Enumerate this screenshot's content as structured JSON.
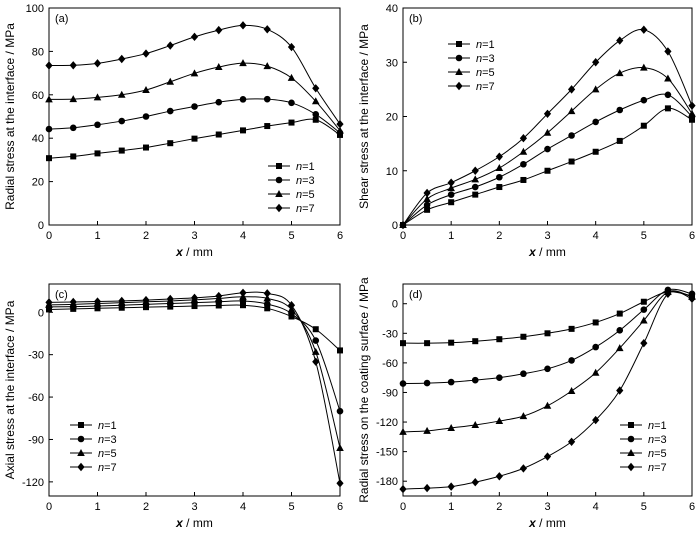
{
  "chart_data": [
    {
      "type": "line",
      "panel_label": "(a)",
      "xlabel_var": "x",
      "xlabel_unit": " / mm",
      "ylabel": "Radial stress at the interface / MPa",
      "xlim": [
        0,
        6
      ],
      "ylim": [
        0,
        100
      ],
      "xticks": [
        "0",
        "1",
        "2",
        "3",
        "4",
        "5",
        "6"
      ],
      "yticks": [
        "0",
        "20",
        "40",
        "60",
        "80",
        "100"
      ],
      "grid": false,
      "legend_position": "bottom-right",
      "series": [
        {
          "name_var": "n",
          "name_value": "=1",
          "marker": "square",
          "x": [
            0,
            0.5,
            1,
            1.5,
            2,
            2.5,
            3,
            3.5,
            4,
            4.5,
            5,
            5.5,
            6
          ],
          "y": [
            30.8,
            31.6,
            33.0,
            34.3,
            35.7,
            37.7,
            39.8,
            41.7,
            43.6,
            45.6,
            47.2,
            48.5,
            41.5
          ]
        },
        {
          "name_var": "n",
          "name_value": "=3",
          "marker": "circle",
          "x": [
            0,
            0.5,
            1,
            1.5,
            2,
            2.5,
            3,
            3.5,
            4,
            4.5,
            5,
            5.5,
            6
          ],
          "y": [
            44.2,
            44.8,
            46.2,
            47.9,
            50.0,
            52.5,
            54.6,
            56.6,
            57.9,
            58.0,
            56.3,
            51.0,
            42.5
          ]
        },
        {
          "name_var": "n",
          "name_value": "=5",
          "marker": "triangle",
          "x": [
            0,
            0.5,
            1,
            1.5,
            2,
            2.5,
            3,
            3.5,
            4,
            4.5,
            5,
            5.5,
            6
          ],
          "y": [
            57.9,
            58.0,
            58.8,
            60.0,
            62.2,
            66.0,
            69.9,
            72.8,
            74.6,
            73.2,
            67.8,
            57.0,
            43.5
          ]
        },
        {
          "name_var": "n",
          "name_value": "=7",
          "marker": "diamond",
          "x": [
            0,
            0.5,
            1,
            1.5,
            2,
            2.5,
            3,
            3.5,
            4,
            4.5,
            5,
            5.5,
            6
          ],
          "y": [
            73.5,
            73.6,
            74.5,
            76.5,
            79.0,
            82.7,
            86.7,
            89.8,
            92.0,
            90.2,
            82.0,
            63.0,
            46.5
          ]
        }
      ]
    },
    {
      "type": "line",
      "panel_label": "(b)",
      "xlabel_var": "x",
      "xlabel_unit": " / mm",
      "ylabel": "Shear stress at the interface / MPa",
      "xlim": [
        0,
        6
      ],
      "ylim": [
        0,
        40
      ],
      "xticks": [
        "0",
        "1",
        "2",
        "3",
        "4",
        "5",
        "6"
      ],
      "yticks": [
        "0",
        "10",
        "20",
        "30",
        "40"
      ],
      "grid": false,
      "legend_position": "top-left",
      "series": [
        {
          "name_var": "n",
          "name_value": "=1",
          "marker": "square",
          "x": [
            0,
            0.5,
            1,
            1.5,
            2,
            2.5,
            3,
            3.5,
            4,
            4.5,
            5,
            5.5,
            6
          ],
          "y": [
            0,
            2.8,
            4.2,
            5.6,
            7.0,
            8.3,
            10.0,
            11.7,
            13.5,
            15.5,
            18.3,
            21.5,
            19.4
          ]
        },
        {
          "name_var": "n",
          "name_value": "=3",
          "marker": "circle",
          "x": [
            0,
            0.5,
            1,
            1.5,
            2,
            2.5,
            3,
            3.5,
            4,
            4.5,
            5,
            5.5,
            6
          ],
          "y": [
            0,
            3.7,
            5.6,
            7.0,
            8.8,
            11.2,
            14.0,
            16.5,
            19.0,
            21.2,
            23.0,
            24.0,
            20.0
          ]
        },
        {
          "name_var": "n",
          "name_value": "=5",
          "marker": "triangle",
          "x": [
            0,
            0.5,
            1,
            1.5,
            2,
            2.5,
            3,
            3.5,
            4,
            4.5,
            5,
            5.5,
            6
          ],
          "y": [
            0,
            4.8,
            6.8,
            8.4,
            10.5,
            13.5,
            17.0,
            21.0,
            25.0,
            28.0,
            29.0,
            27.0,
            20.5
          ]
        },
        {
          "name_var": "n",
          "name_value": "=7",
          "marker": "diamond",
          "x": [
            0,
            0.5,
            1,
            1.5,
            2,
            2.5,
            3,
            3.5,
            4,
            4.5,
            5,
            5.5,
            6
          ],
          "y": [
            0,
            5.9,
            7.8,
            10.0,
            12.6,
            16.0,
            20.5,
            25.0,
            30.0,
            34.0,
            36.0,
            32.0,
            22.0
          ]
        }
      ]
    },
    {
      "type": "line",
      "panel_label": "(c)",
      "xlabel_var": "x",
      "xlabel_unit": " / mm",
      "ylabel": "Axial stress at the interface / MPa",
      "xlim": [
        0,
        6
      ],
      "ylim": [
        -130,
        20
      ],
      "xticks": [
        "0",
        "1",
        "2",
        "3",
        "4",
        "5",
        "6"
      ],
      "yticks": [
        "-120",
        "-90",
        "-60",
        "-30",
        "0"
      ],
      "grid": false,
      "legend_position": "bottom-left",
      "series": [
        {
          "name_var": "n",
          "name_value": "=1",
          "marker": "square",
          "x": [
            0,
            0.5,
            1,
            1.5,
            2,
            2.5,
            3,
            3.5,
            4,
            4.5,
            5,
            5.5,
            6
          ],
          "y": [
            2.0,
            2.4,
            2.8,
            3.2,
            3.6,
            4.0,
            4.4,
            4.8,
            5.0,
            2.8,
            -3.0,
            -12.0,
            -27.0
          ]
        },
        {
          "name_var": "n",
          "name_value": "=3",
          "marker": "circle",
          "x": [
            0,
            0.5,
            1,
            1.5,
            2,
            2.5,
            3,
            3.5,
            4,
            4.5,
            5,
            5.5,
            6
          ],
          "y": [
            3.8,
            4.0,
            4.4,
            5.0,
            5.6,
            6.2,
            6.8,
            7.4,
            8.0,
            5.8,
            -1.0,
            -20.0,
            -70.0
          ]
        },
        {
          "name_var": "n",
          "name_value": "=5",
          "marker": "triangle",
          "x": [
            0,
            0.5,
            1,
            1.5,
            2,
            2.5,
            3,
            3.5,
            4,
            4.5,
            5,
            5.5,
            6
          ],
          "y": [
            5.2,
            5.6,
            6.2,
            6.8,
            7.4,
            8.0,
            8.8,
            9.8,
            11.0,
            9.8,
            2.0,
            -28.0,
            -96.0
          ]
        },
        {
          "name_var": "n",
          "name_value": "=7",
          "marker": "diamond",
          "x": [
            0,
            0.5,
            1,
            1.5,
            2,
            2.5,
            3,
            3.5,
            4,
            4.5,
            5,
            5.5,
            6
          ],
          "y": [
            7.0,
            7.3,
            7.6,
            8.0,
            8.6,
            9.4,
            10.2,
            11.5,
            13.8,
            13.4,
            5.0,
            -35.0,
            -121.0
          ]
        }
      ]
    },
    {
      "type": "line",
      "panel_label": "(d)",
      "xlabel_var": "x",
      "xlabel_unit": " / mm",
      "ylabel": "Radial stress on the coating surface / MPa",
      "xlim": [
        0,
        6
      ],
      "ylim": [
        -195,
        20
      ],
      "xticks": [
        "0",
        "1",
        "2",
        "3",
        "4",
        "5",
        "6"
      ],
      "yticks": [
        "-180",
        "-150",
        "-120",
        "-90",
        "-60",
        "-30",
        "0"
      ],
      "grid": false,
      "legend_position": "bottom-right",
      "series": [
        {
          "name_var": "n",
          "name_value": "=1",
          "marker": "square",
          "x": [
            0,
            0.5,
            1,
            1.5,
            2,
            2.5,
            3,
            3.5,
            4,
            4.5,
            5,
            5.5,
            6
          ],
          "y": [
            -40.0,
            -40.0,
            -39.5,
            -38.0,
            -36.0,
            -33.5,
            -30.0,
            -25.5,
            -19.0,
            -10.0,
            2.0,
            12.0,
            8.0
          ]
        },
        {
          "name_var": "n",
          "name_value": "=3",
          "marker": "circle",
          "x": [
            0,
            0.5,
            1,
            1.5,
            2,
            2.5,
            3,
            3.5,
            4,
            4.5,
            5,
            5.5,
            6
          ],
          "y": [
            -81.0,
            -80.5,
            -79.5,
            -77.5,
            -75.0,
            -71.0,
            -66.0,
            -57.5,
            -44.0,
            -27.0,
            -6.0,
            14.0,
            10.0
          ]
        },
        {
          "name_var": "n",
          "name_value": "=5",
          "marker": "triangle",
          "x": [
            0,
            0.5,
            1,
            1.5,
            2,
            2.5,
            3,
            3.5,
            4,
            4.5,
            5,
            5.5,
            6
          ],
          "y": [
            -130.0,
            -129.0,
            -126.0,
            -123.0,
            -119.0,
            -114.0,
            -103.5,
            -88.5,
            -70.0,
            -45.0,
            -17.0,
            12.0,
            7.0
          ]
        },
        {
          "name_var": "n",
          "name_value": "=7",
          "marker": "diamond",
          "x": [
            0,
            0.5,
            1,
            1.5,
            2,
            2.5,
            3,
            3.5,
            4,
            4.5,
            5,
            5.5,
            6
          ],
          "y": [
            -188.0,
            -187.0,
            -185.5,
            -181.0,
            -175.0,
            -167.0,
            -155.0,
            -140.0,
            -118.0,
            -88.0,
            -40.0,
            10.0,
            5.0
          ]
        }
      ]
    }
  ]
}
